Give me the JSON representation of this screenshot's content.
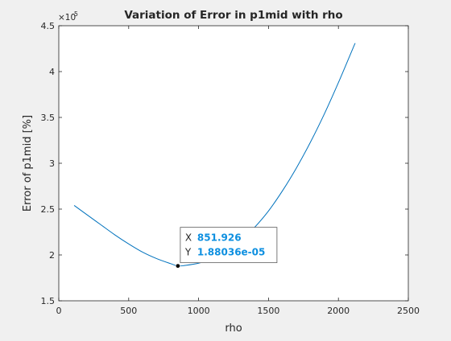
{
  "chart_data": {
    "type": "line",
    "title": "Variation of Error in p1mid with rho",
    "xlabel": "rho",
    "ylabel": "Error of p1mid [%]",
    "xlim": [
      0,
      2500
    ],
    "ylim": [
      1.5e-05,
      4.5e-05
    ],
    "y_exponent_label": "×10",
    "y_exponent_value": "-5",
    "xticks": [
      0,
      500,
      1000,
      1500,
      2000,
      2500
    ],
    "xtick_labels": [
      "0",
      "500",
      "1000",
      "1500",
      "2000",
      "2500"
    ],
    "yticks": [
      1.5e-05,
      2e-05,
      2.5e-05,
      3e-05,
      3.5e-05,
      4e-05,
      4.5e-05
    ],
    "ytick_labels": [
      "1.5",
      "2",
      "2.5",
      "3",
      "3.5",
      "4",
      "4.5"
    ],
    "grid": false,
    "series": [
      {
        "color": "#0072bd",
        "x": [
          110,
          200,
          300,
          400,
          500,
          600,
          700,
          800,
          852,
          900,
          1000,
          1100,
          1200,
          1300,
          1400,
          1500,
          1600,
          1700,
          1800,
          1900,
          2000,
          2100,
          2120
        ],
        "y": [
          2.54e-05,
          2.44e-05,
          2.33e-05,
          2.22e-05,
          2.12e-05,
          2.03e-05,
          1.96e-05,
          1.905e-05,
          1.88e-05,
          1.885e-05,
          1.91e-05,
          1.96e-05,
          2.04e-05,
          2.15e-05,
          2.3e-05,
          2.48e-05,
          2.7e-05,
          2.95e-05,
          3.23e-05,
          3.54e-05,
          3.88e-05,
          4.24e-05,
          4.31e-05
        ]
      }
    ],
    "datatip": {
      "x_label": "X",
      "x_value": "851.926",
      "y_label": "Y",
      "y_value": "1.88036e-05",
      "x": 851.926,
      "y": 1.88036e-05,
      "value_color": "#0d8fe0"
    }
  }
}
